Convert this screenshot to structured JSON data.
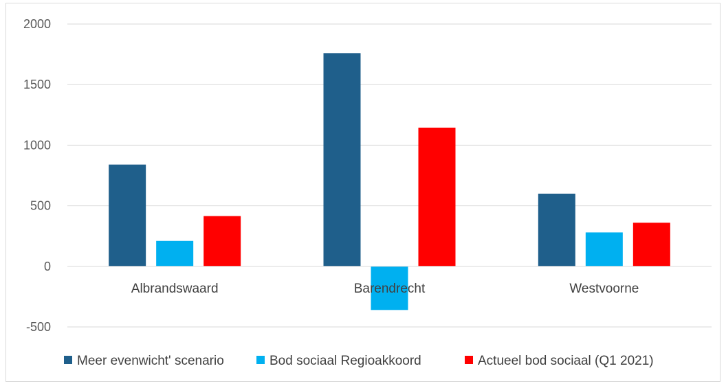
{
  "chart_data": {
    "type": "bar",
    "title": "",
    "xlabel": "",
    "ylabel": "",
    "categories": [
      "Albrandswaard",
      "Barendrecht",
      "Westvoorne"
    ],
    "series": [
      {
        "name": "Meer evenwicht' scenario",
        "color": "#1f5f8b",
        "values": [
          840,
          1760,
          600
        ]
      },
      {
        "name": "Bod sociaal Regioakkoord",
        "color": "#00b0f0",
        "values": [
          210,
          -360,
          280
        ]
      },
      {
        "name": "Actueel bod sociaal (Q1 2021)",
        "color": "#ff0000",
        "values": [
          415,
          1145,
          360
        ]
      }
    ],
    "ylim": [
      -500,
      2000
    ],
    "yticks": [
      2000,
      1500,
      1000,
      500,
      0,
      -500
    ],
    "grid": true,
    "legend_position": "bottom"
  }
}
